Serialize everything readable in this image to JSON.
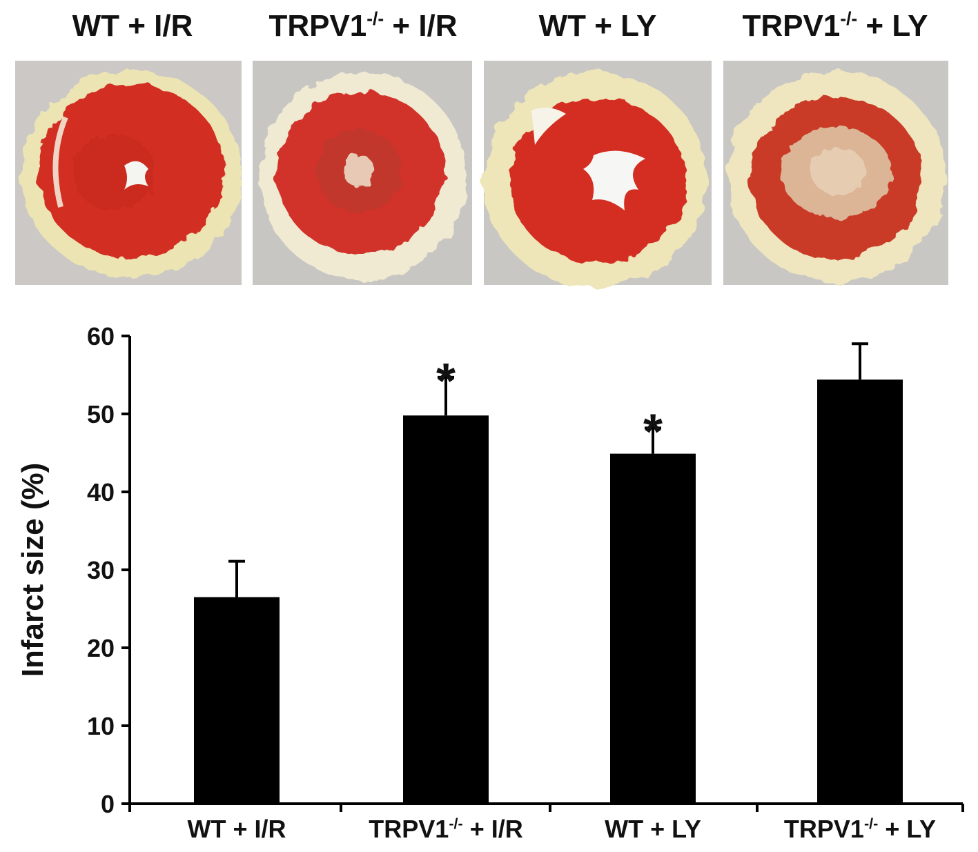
{
  "photos": {
    "titles": [
      {
        "main": "WT + I/R",
        "sup": "",
        "rest": ""
      },
      {
        "main": "TRPV1",
        "sup": "-/-",
        "rest": " + I/R"
      },
      {
        "main": "WT + LY",
        "sup": "",
        "rest": ""
      },
      {
        "main": "TRPV1",
        "sup": "-/-",
        "rest": " + LY"
      }
    ],
    "colors": {
      "background": "#c9c6c3",
      "rim": "#ece3b0",
      "stain": "#d42f22",
      "lumen": "#f4f4f0"
    }
  },
  "chart_data": {
    "type": "bar",
    "categories": [
      {
        "main": "WT + I/R",
        "sup": "",
        "rest": ""
      },
      {
        "main": "TRPV1",
        "sup": "-/-",
        "rest": " + I/R"
      },
      {
        "main": "WT + LY",
        "sup": "",
        "rest": ""
      },
      {
        "main": "TRPV1",
        "sup": "-/-",
        "rest": " + LY"
      }
    ],
    "values": [
      26.5,
      49.8,
      44.9,
      54.4
    ],
    "errors": [
      4.6,
      4.9,
      3.3,
      4.6
    ],
    "significance": [
      "",
      "*",
      "*",
      ""
    ],
    "ylabel": "Infarct size (%)",
    "ylim": [
      0,
      60
    ],
    "yticks": [
      0,
      10,
      20,
      30,
      40,
      50,
      60
    ],
    "bar_color": "#000000",
    "grid": false,
    "legend": "none"
  }
}
